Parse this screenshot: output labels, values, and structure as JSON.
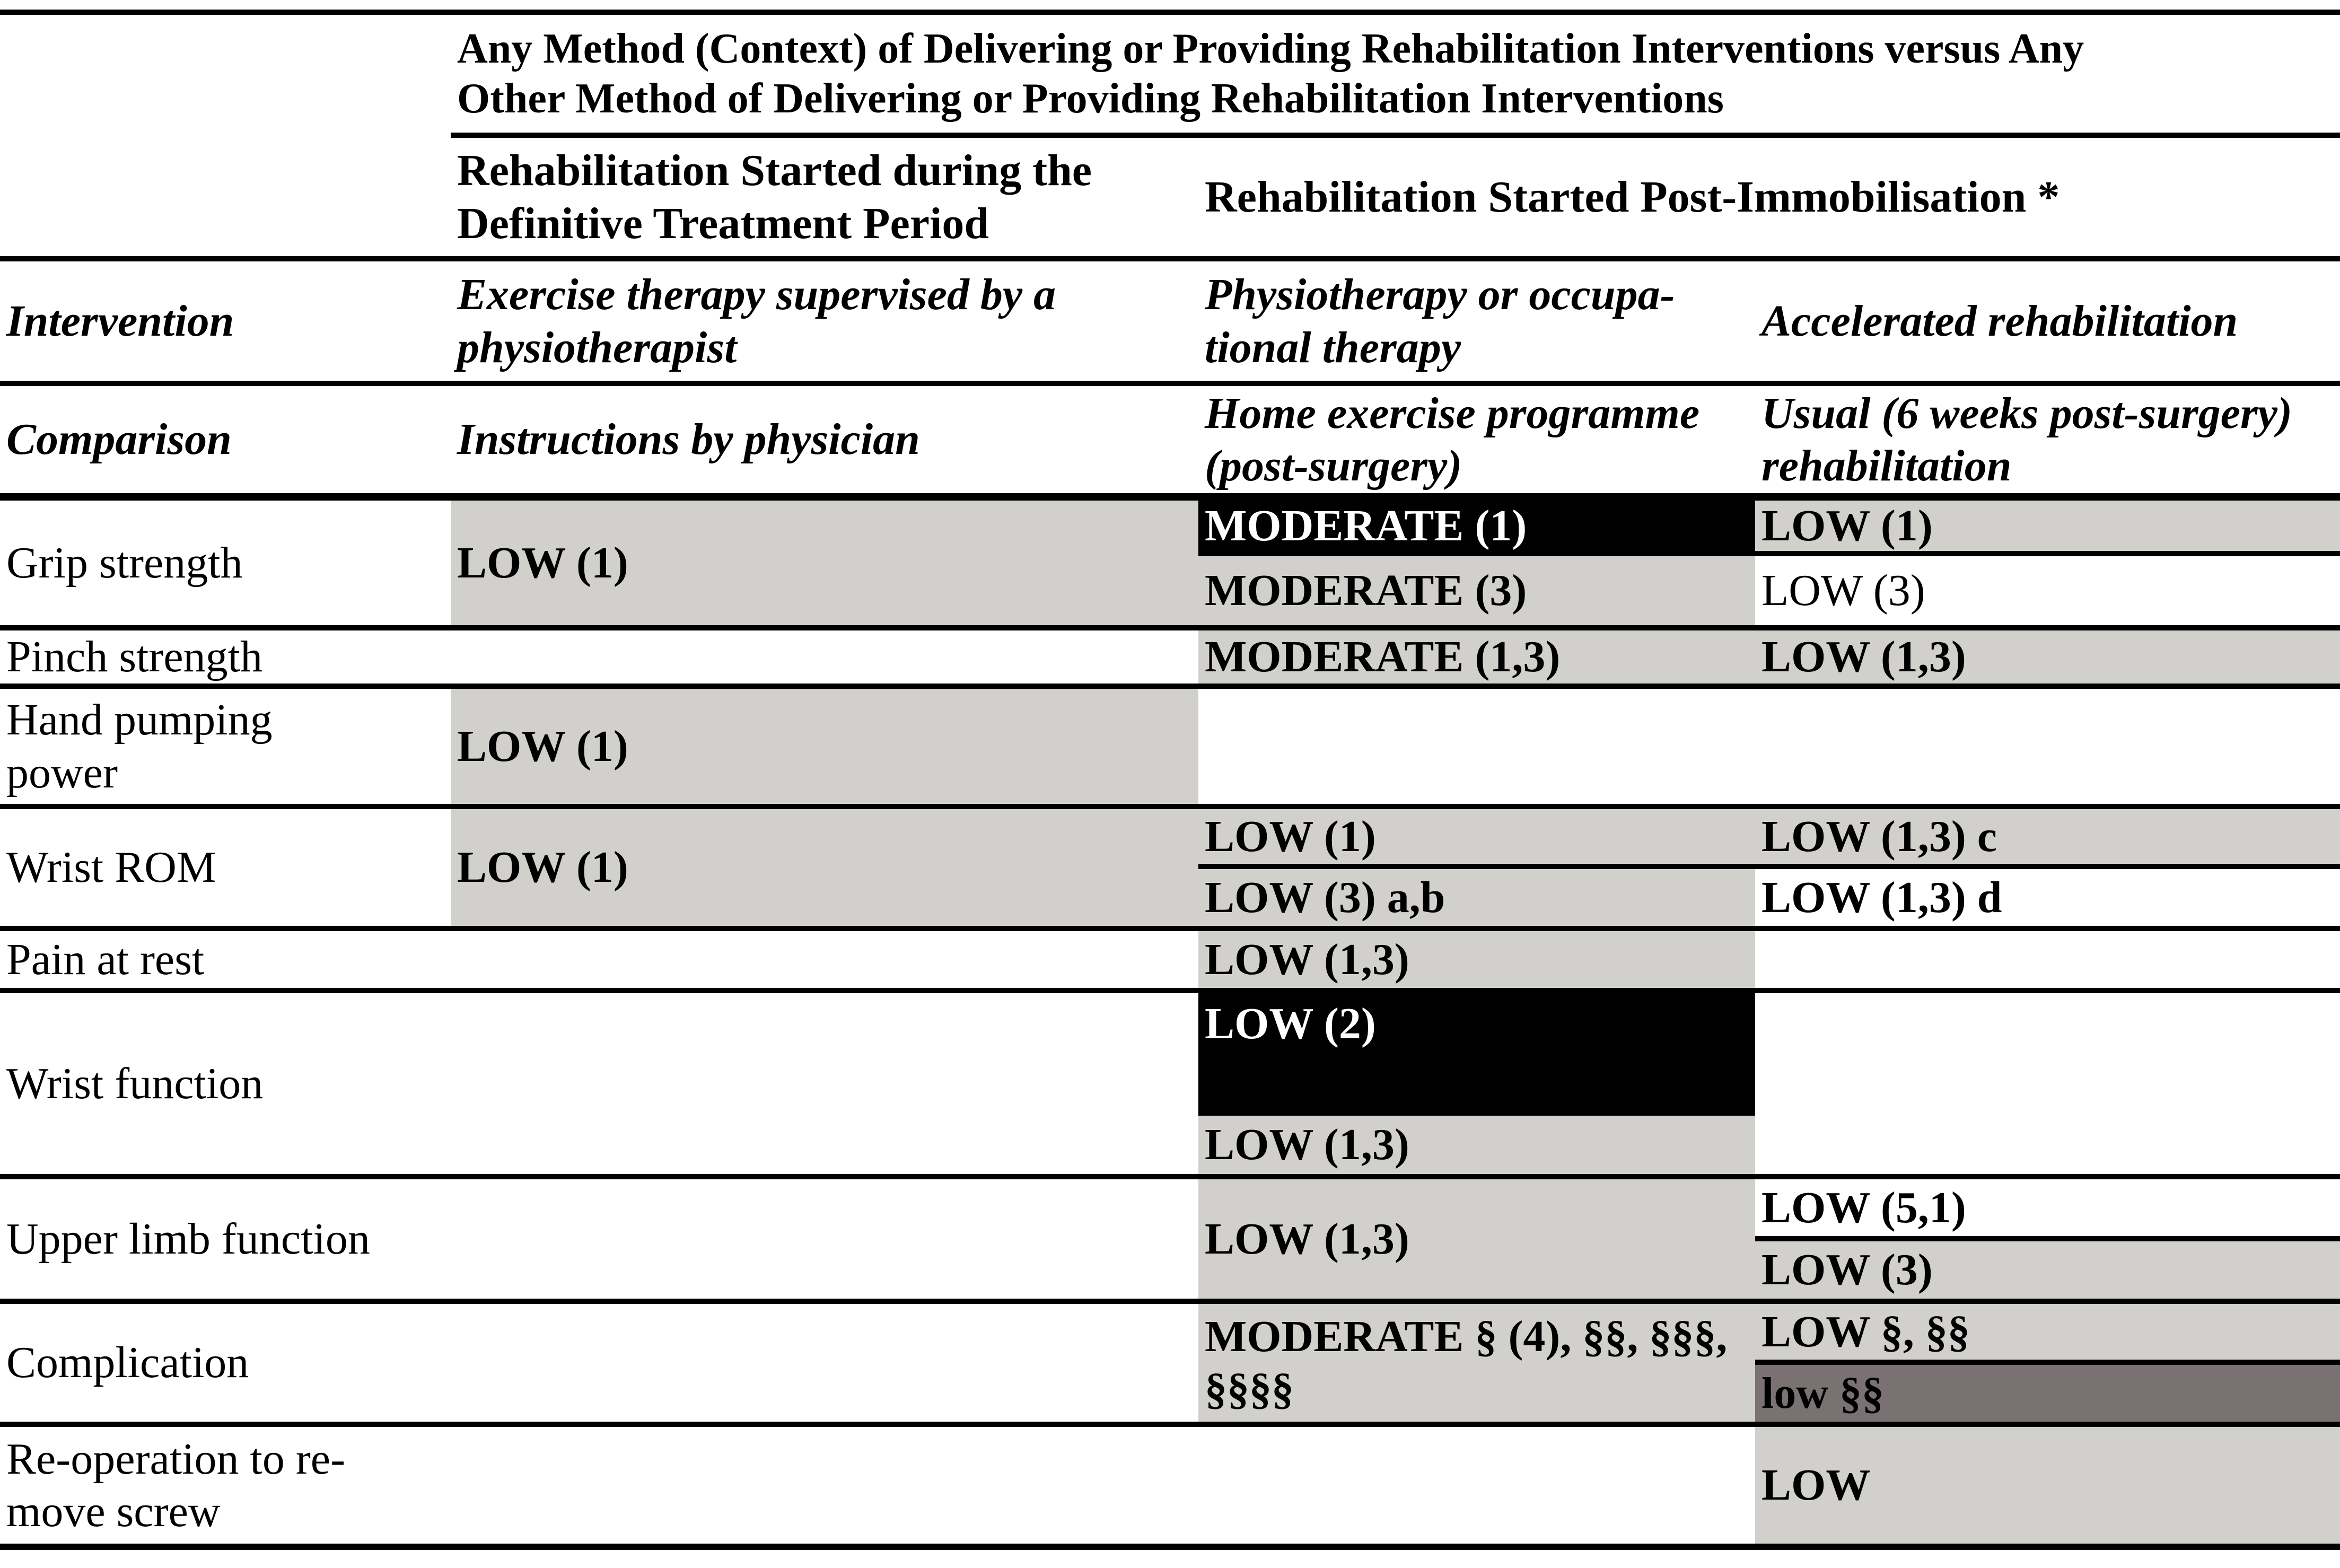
{
  "header": {
    "span_title_lines": [
      "Any Method (Context) of Delivering or Providing Rehabilitation Interventions versus Any",
      "Other Method of Delivering or Providing Rehabilitation Interventions"
    ],
    "during_treatment_lines": [
      "Rehabilitation Started during the",
      "Definitive Treatment Period"
    ],
    "post_immobilisation": "Rehabilitation Started Post-Immobilisation *"
  },
  "intervention_row": {
    "label": "Intervention",
    "col2_lines": [
      "Exercise therapy supervised by a",
      "physiotherapist"
    ],
    "col3_lines": [
      "Physiotherapy or occupa-",
      "tional therapy"
    ],
    "col4": "Accelerated rehabilitation"
  },
  "comparison_row": {
    "label": "Comparison",
    "col2": "Instructions by physician",
    "col3_lines": [
      "Home exercise programme",
      "(post-surgery)"
    ],
    "col4_lines": [
      "Usual (6 weeks post-surgery)",
      "rehabilitation"
    ]
  },
  "rows": {
    "grip": {
      "label": "Grip strength",
      "col2": "LOW (1)",
      "col3_top": "MODERATE (1)",
      "col3_bottom": "MODERATE (3)",
      "col4_top": "LOW (1)",
      "col4_bottom": "LOW (3)"
    },
    "pinch": {
      "label": "Pinch strength",
      "col3": "MODERATE (1,3)",
      "col4": "LOW (1,3)"
    },
    "hand_pumping": {
      "label_lines": [
        "Hand pumping",
        "power"
      ],
      "col2": "LOW (1)"
    },
    "wrist_rom": {
      "label": "Wrist ROM",
      "col2": "LOW (1)",
      "col3_top": "LOW (1)",
      "col3_bottom": "LOW (3) a,b",
      "col4_top": "LOW (1,3) c",
      "col4_bottom": "LOW (1,3) d"
    },
    "pain_at_rest": {
      "label": "Pain at rest",
      "col3": "LOW (1,3)"
    },
    "wrist_function": {
      "label": "Wrist function",
      "col3_top": "LOW (2)",
      "col3_bottom": "LOW (1,3)"
    },
    "upper_limb": {
      "label": "Upper limb function",
      "col3": "LOW (1,3)",
      "col4_top": "LOW (5,1)",
      "col4_bottom": "LOW (3)"
    },
    "complication": {
      "label": "Complication",
      "col3_lines": [
        "MODERATE § (4), §§, §§§,",
        "§§§§"
      ],
      "col4_top": "LOW §, §§",
      "col4_bottom": "low §§"
    },
    "reoperation": {
      "label_lines": [
        "Re-operation to re-",
        "move screw"
      ],
      "col4": "LOW"
    }
  },
  "colors": {
    "shaded_cell": "#d1d0cd",
    "dark_cell": "#7a7272",
    "highlight_cell": "#000000",
    "rule": "#000000"
  }
}
